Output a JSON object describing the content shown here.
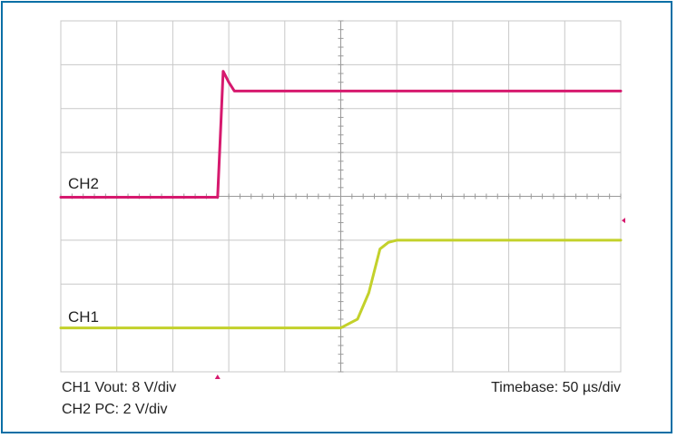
{
  "chart_data": {
    "type": "line",
    "x_unit": "div",
    "y_unit": "div",
    "xlim": [
      0,
      10
    ],
    "ylim": [
      -4,
      4
    ],
    "grid": true,
    "series": [
      {
        "name": "CH2",
        "color": "#d6196e",
        "x": [
          0,
          2.8,
          2.86,
          2.9,
          3.0,
          3.1,
          3.2,
          6.0,
          10
        ],
        "y": [
          -0.02,
          -0.02,
          1.7,
          2.85,
          2.6,
          2.4,
          2.4,
          2.4,
          2.4
        ]
      },
      {
        "name": "CH1",
        "color": "#c3d12b",
        "x": [
          0,
          5.0,
          5.3,
          5.5,
          5.7,
          5.85,
          6.0,
          10
        ],
        "y": [
          -3.0,
          -3.0,
          -2.8,
          -2.2,
          -1.2,
          -1.05,
          -1.0,
          -1.0
        ]
      }
    ],
    "trace_labels": [
      "CH2",
      "CH1"
    ],
    "captions": {
      "ch1_scale": "CH1 Vout: 8 V/div",
      "ch2_scale": "CH2 PC: 2 V/div",
      "timebase": "Timebase: 50 µs/div"
    },
    "colors": {
      "border": "#0a6fa6",
      "grid": "#c8c8c8",
      "ch1": "#c3d12b",
      "ch2": "#d6196e"
    }
  }
}
